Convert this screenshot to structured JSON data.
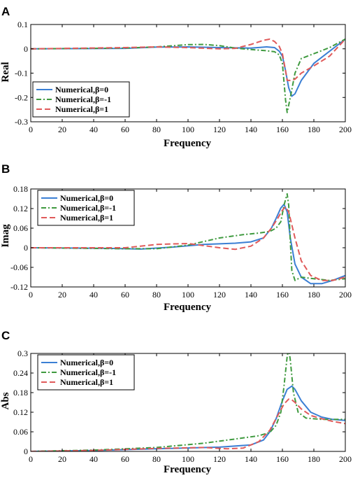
{
  "colors": {
    "series_0": "#3b7fd4",
    "series_1": "#3f9a3f",
    "series_2": "#e05a5a"
  },
  "chart_data": [
    {
      "panel": "A",
      "type": "line",
      "xlabel": "Frequency",
      "ylabel": "Real",
      "xlim": [
        0,
        200
      ],
      "ylim": [
        -0.3,
        0.1
      ],
      "xticks": [
        0,
        20,
        40,
        60,
        80,
        100,
        120,
        140,
        160,
        180,
        200
      ],
      "yticks": [
        -0.3,
        -0.2,
        -0.1,
        0,
        0.1
      ],
      "ytick_labels": [
        "-0.3",
        "-0.2",
        "-0.1",
        "0",
        "0.1"
      ],
      "grid": false,
      "legend": "bottom-left",
      "series": [
        {
          "name": "Numerical,β=0",
          "style": "solid",
          "x": [
            0,
            60,
            80,
            100,
            120,
            140,
            150,
            155,
            158,
            160,
            162,
            164,
            166,
            168,
            172,
            180,
            190,
            200
          ],
          "y": [
            0,
            0.002,
            0.007,
            0.008,
            0.005,
            0.003,
            0.008,
            0.005,
            -0.01,
            -0.03,
            -0.09,
            -0.16,
            -0.195,
            -0.185,
            -0.13,
            -0.06,
            -0.01,
            0.04
          ]
        },
        {
          "name": "Numerical,β=-1",
          "style": "dashdot",
          "x": [
            0,
            60,
            80,
            100,
            110,
            120,
            130,
            140,
            150,
            155,
            158,
            160,
            162,
            163,
            165,
            168,
            172,
            180,
            190,
            200
          ],
          "y": [
            0,
            0.003,
            0.008,
            0.017,
            0.018,
            0.013,
            0.003,
            -0.003,
            -0.008,
            -0.012,
            -0.025,
            -0.06,
            -0.21,
            -0.262,
            -0.2,
            -0.1,
            -0.04,
            -0.02,
            0.005,
            0.04
          ]
        },
        {
          "name": "Numerical,β=1",
          "style": "dashed",
          "x": [
            0,
            60,
            80,
            100,
            120,
            130,
            140,
            148,
            152,
            155,
            158,
            160,
            162,
            163,
            165,
            168,
            172,
            180,
            190,
            200
          ],
          "y": [
            0,
            0.005,
            0.008,
            0.005,
            0.0,
            0.002,
            0.018,
            0.035,
            0.04,
            0.03,
            0.01,
            -0.02,
            -0.09,
            -0.13,
            -0.13,
            -0.125,
            -0.1,
            -0.07,
            -0.03,
            0.04
          ]
        }
      ]
    },
    {
      "panel": "B",
      "type": "line",
      "xlabel": "Frequency",
      "ylabel": "Imag",
      "xlim": [
        0,
        200
      ],
      "ylim": [
        -0.12,
        0.18
      ],
      "xticks": [
        0,
        20,
        40,
        60,
        80,
        100,
        120,
        140,
        160,
        180,
        200
      ],
      "yticks": [
        -0.12,
        -0.06,
        0,
        0.06,
        0.12,
        0.18
      ],
      "ytick_labels": [
        "-0.12",
        "-0.06",
        "0",
        "0.06",
        "0.12",
        "0.18"
      ],
      "grid": false,
      "legend": "top-left",
      "series": [
        {
          "name": "Numerical,β=0",
          "style": "solid",
          "x": [
            0,
            50,
            70,
            90,
            110,
            130,
            140,
            148,
            153,
            156,
            159,
            161,
            163,
            165,
            168,
            172,
            178,
            185,
            192,
            200
          ],
          "y": [
            0,
            -0.002,
            -0.004,
            0.002,
            0.01,
            0.014,
            0.018,
            0.03,
            0.06,
            0.09,
            0.122,
            0.133,
            0.11,
            0.03,
            -0.05,
            -0.09,
            -0.11,
            -0.11,
            -0.1,
            -0.085
          ]
        },
        {
          "name": "Numerical,β=-1",
          "style": "dashdot",
          "x": [
            0,
            60,
            80,
            100,
            120,
            135,
            145,
            152,
            156,
            159,
            161,
            163,
            164,
            165,
            166,
            168,
            172,
            180,
            190,
            200
          ],
          "y": [
            0,
            -0.003,
            -0.003,
            0.008,
            0.03,
            0.04,
            0.045,
            0.05,
            0.06,
            0.08,
            0.13,
            0.165,
            0.13,
            0.02,
            -0.07,
            -0.1,
            -0.09,
            -0.095,
            -0.1,
            -0.095
          ]
        },
        {
          "name": "Numerical,β=1",
          "style": "dashed",
          "x": [
            0,
            60,
            80,
            100,
            120,
            130,
            140,
            148,
            153,
            157,
            160,
            162,
            164,
            166,
            168,
            172,
            178,
            185,
            192,
            200
          ],
          "y": [
            0,
            0.0,
            0.01,
            0.013,
            0.0,
            -0.005,
            0.005,
            0.03,
            0.06,
            0.09,
            0.115,
            0.125,
            0.11,
            0.07,
            0.03,
            -0.04,
            -0.085,
            -0.1,
            -0.1,
            -0.09
          ]
        }
      ]
    },
    {
      "panel": "C",
      "type": "line",
      "xlabel": "Frequency",
      "ylabel": "Abs",
      "xlim": [
        0,
        200
      ],
      "ylim": [
        0,
        0.3
      ],
      "xticks": [
        0,
        20,
        40,
        60,
        80,
        100,
        120,
        140,
        160,
        180,
        200
      ],
      "yticks": [
        0,
        0.06,
        0.12,
        0.18,
        0.24,
        0.3
      ],
      "ytick_labels": [
        "0",
        "0.06",
        "0.12",
        "0.18",
        "0.24",
        "0.3"
      ],
      "grid": false,
      "legend": "top-left",
      "series": [
        {
          "name": "Numerical,β=0",
          "style": "solid",
          "x": [
            0,
            40,
            80,
            120,
            140,
            148,
            152,
            156,
            160,
            163,
            166,
            168,
            172,
            178,
            185,
            192,
            200
          ],
          "y": [
            0,
            0.003,
            0.008,
            0.013,
            0.02,
            0.035,
            0.06,
            0.1,
            0.155,
            0.19,
            0.2,
            0.19,
            0.155,
            0.12,
            0.105,
            0.098,
            0.095
          ]
        },
        {
          "name": "Numerical,β=-1",
          "style": "dashdot",
          "x": [
            0,
            40,
            80,
            110,
            130,
            145,
            152,
            156,
            159,
            161,
            163,
            164,
            165,
            167,
            170,
            175,
            185,
            200
          ],
          "y": [
            0,
            0.004,
            0.012,
            0.025,
            0.038,
            0.048,
            0.058,
            0.08,
            0.12,
            0.2,
            0.29,
            0.315,
            0.28,
            0.18,
            0.12,
            0.102,
            0.098,
            0.098
          ]
        },
        {
          "name": "Numerical,β=1",
          "style": "dashed",
          "x": [
            0,
            40,
            80,
            110,
            125,
            135,
            145,
            152,
            157,
            161,
            164,
            166,
            168,
            172,
            178,
            185,
            192,
            200
          ],
          "y": [
            0,
            0.003,
            0.009,
            0.012,
            0.008,
            0.01,
            0.03,
            0.065,
            0.11,
            0.145,
            0.16,
            0.158,
            0.15,
            0.13,
            0.11,
            0.1,
            0.092,
            0.085
          ]
        }
      ]
    }
  ]
}
